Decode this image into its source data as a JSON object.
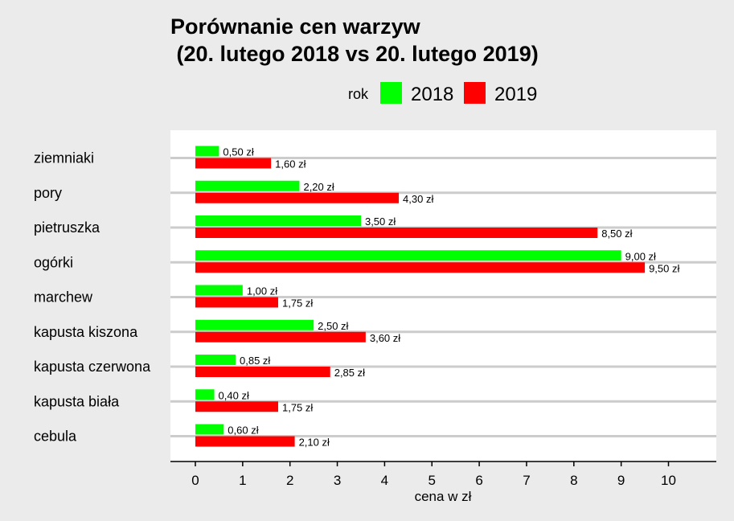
{
  "chart_data": {
    "type": "bar",
    "orientation": "horizontal",
    "title_line1": "Porównanie cen warzyw",
    "title_line2": " (20. lutego 2018 vs 20. lutego 2019)",
    "legend_title": "rok",
    "legend_position": "top",
    "xlabel": "cena w zł",
    "ylabel": "",
    "xlim": [
      0,
      11
    ],
    "x_ticks": [
      0,
      1,
      2,
      3,
      4,
      5,
      6,
      7,
      8,
      9,
      10
    ],
    "grid": true,
    "categories": [
      "ziemniaki",
      "pory",
      "pietruszka",
      "ogórki",
      "marchew",
      "kapusta kiszona",
      "kapusta czerwona",
      "kapusta biała",
      "cebula"
    ],
    "series": [
      {
        "name": "2018",
        "color": "#00ff00",
        "values": [
          0.5,
          2.2,
          3.5,
          9.0,
          1.0,
          2.5,
          0.85,
          0.4,
          0.6
        ],
        "labels": [
          "0,50 zł",
          "2,20 zł",
          "3,50 zł",
          "9,00 zł",
          "1,00 zł",
          "2,50 zł",
          "0,85 zł",
          "0,40 zł",
          "0,60 zł"
        ]
      },
      {
        "name": "2019",
        "color": "#ff0000",
        "values": [
          1.6,
          4.3,
          8.5,
          9.5,
          1.75,
          3.6,
          2.85,
          1.75,
          2.1
        ],
        "labels": [
          "1,60 zł",
          "4,30 zł",
          "8,50 zł",
          "9,50 zł",
          "1,75 zł",
          "3,60 zł",
          "2,85 zł",
          "1,75 zł",
          "2,10 zł"
        ]
      }
    ]
  }
}
